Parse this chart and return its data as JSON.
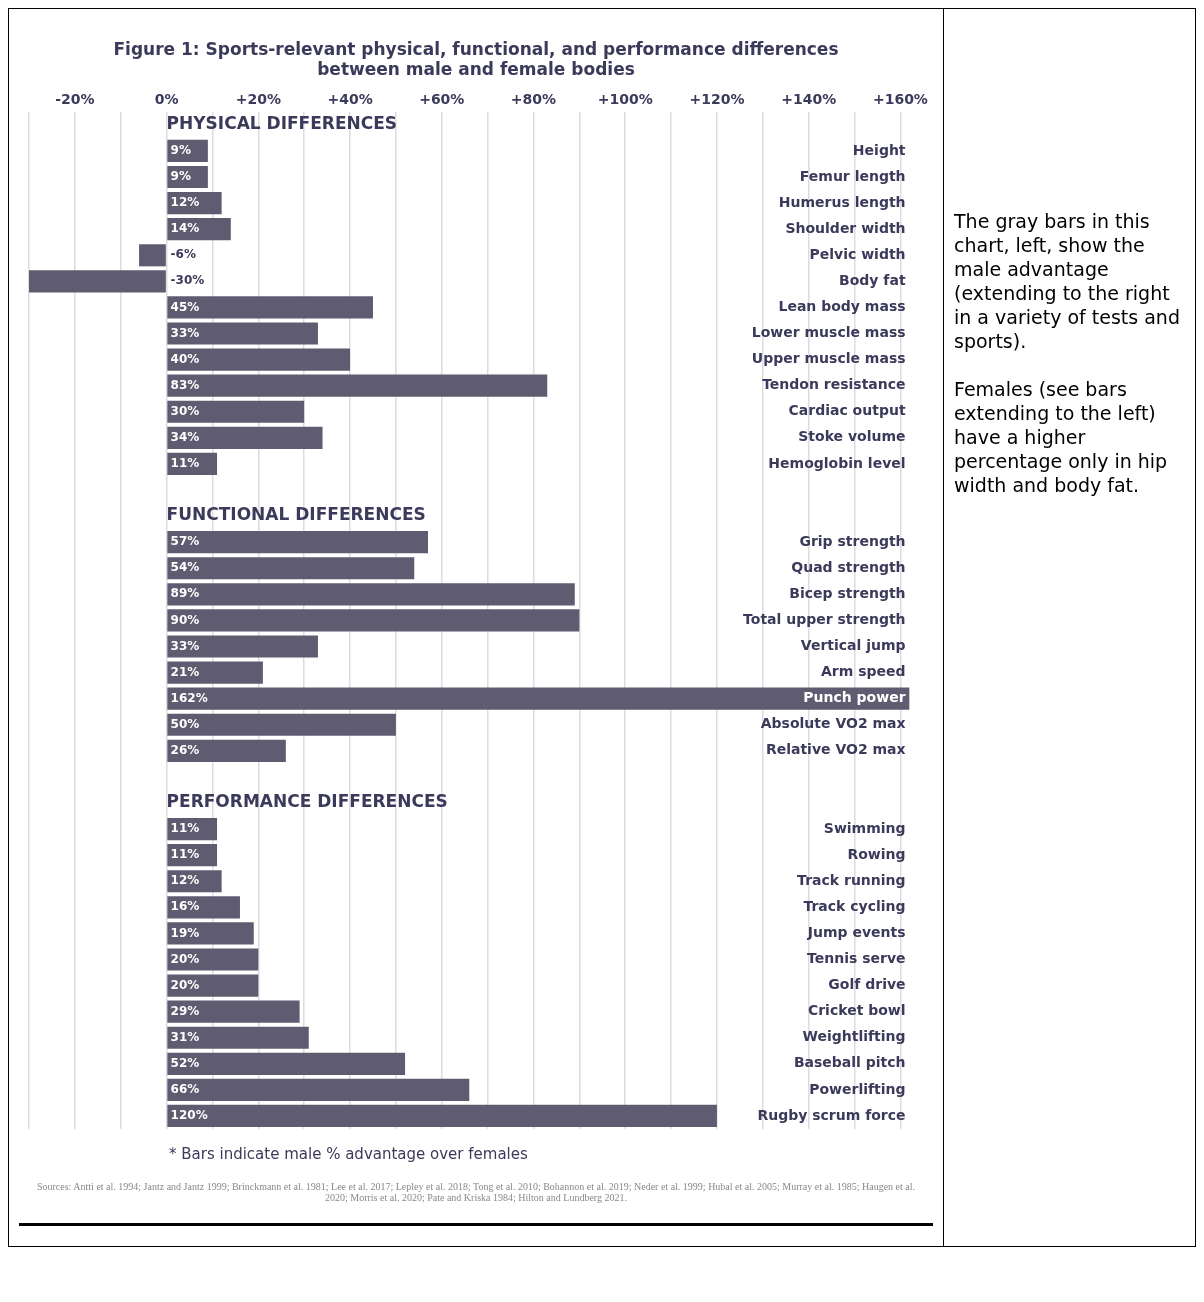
{
  "chart_data": {
    "type": "bar",
    "orientation": "horizontal",
    "title": "Figure 1: Sports-relevant physical, functional, and performance differences between male and female bodies",
    "categories": [
      null,
      "Height",
      "Femur length",
      "Humerus length",
      "Shoulder width",
      "Pelvic width",
      "Body fat",
      "Lean body mass",
      "Lower muscle mass",
      "Upper muscle mass",
      "Tendon resistance",
      "Cardiac output",
      "Stoke volume",
      "Hemoglobin level",
      null,
      null,
      "Grip strength",
      "Quad strength",
      "Bicep strength",
      "Total upper strength",
      "Vertical jump",
      "Arm speed",
      "Punch power",
      "Absolute VO2 max",
      "Relative VO2 max",
      null,
      null,
      "Swimming",
      "Rowing",
      "Track running",
      "Track cycling",
      "Jump events",
      "Tennis serve",
      "Golf drive",
      "Cricket bowl",
      "Weightlifting",
      "Baseball pitch",
      "Powerlifting",
      "Rugby scrum force"
    ],
    "values": [
      null,
      9,
      9,
      12,
      14,
      -6,
      -30,
      45,
      33,
      40,
      83,
      30,
      34,
      11,
      null,
      null,
      57,
      54,
      89,
      90,
      33,
      21,
      162,
      50,
      26,
      null,
      null,
      11,
      11,
      12,
      16,
      19,
      20,
      20,
      29,
      31,
      52,
      66,
      120
    ],
    "value_labels": [
      null,
      "9%",
      "9%",
      "12%",
      "14%",
      "-6%",
      "-30%",
      "45%",
      "33%",
      "40%",
      "83%",
      "30%",
      "34%",
      "11%",
      null,
      null,
      "57%",
      "54%",
      "89%",
      "90%",
      "33%",
      "21%",
      "162%",
      "50%",
      "26%",
      null,
      null,
      "11%",
      "11%",
      "12%",
      "16%",
      "19%",
      "20%",
      "20%",
      "29%",
      "31%",
      "52%",
      "66%",
      "120%"
    ],
    "color": "#5f5b70",
    "xlim": [
      -30,
      162
    ],
    "xticks": [
      {
        "value": -30,
        "label": null
      },
      {
        "value": -20,
        "label": "-20%"
      },
      {
        "value": -10,
        "label": null
      },
      {
        "value": 0,
        "label": "0%"
      },
      {
        "value": 10,
        "label": null
      },
      {
        "value": 20,
        "label": "+20%"
      },
      {
        "value": 30,
        "label": null
      },
      {
        "value": 40,
        "label": "+40%"
      },
      {
        "value": 50,
        "label": null
      },
      {
        "value": 60,
        "label": "+60%"
      },
      {
        "value": 70,
        "label": null
      },
      {
        "value": 80,
        "label": "+80%"
      },
      {
        "value": 90,
        "label": null
      },
      {
        "value": 100,
        "label": "+100%"
      },
      {
        "value": 110,
        "label": null
      },
      {
        "value": 120,
        "label": "+120%"
      },
      {
        "value": 130,
        "label": null
      },
      {
        "value": 140,
        "label": "+140%"
      },
      {
        "value": 150,
        "label": null
      },
      {
        "value": 160,
        "label": "+160%"
      }
    ],
    "grid": "x",
    "legend": false,
    "annotations": [
      "PHYSICAL DIFFERENCES",
      "FUNCTIONAL DIFFERENCES",
      "PERFORMANCE DIFFERENCES",
      "* Bars indicate male % advantage over females",
      "Sources: Antti et al. 1994; Jantz and Jantz 1999; Brinckmann et al. 1981; Lee et al. 2017; Lepley et al. 2018; Tong et al. 2010; Bohannon et al. 2019; Neder et al. 1999; Hubal et al. 2005; Murray et al. 1985; Haugen et al. 2020; Morris et al. 2020; Pate and Kriska 1984; Hilton and Lundberg 2021.",
      "The gray bars in this chart, left, show the male advantage (extending to the right in a variety of tests and sports).",
      "Females (see bars extending to the left) have a higher percentage only in hip width and body fat."
    ]
  }
}
